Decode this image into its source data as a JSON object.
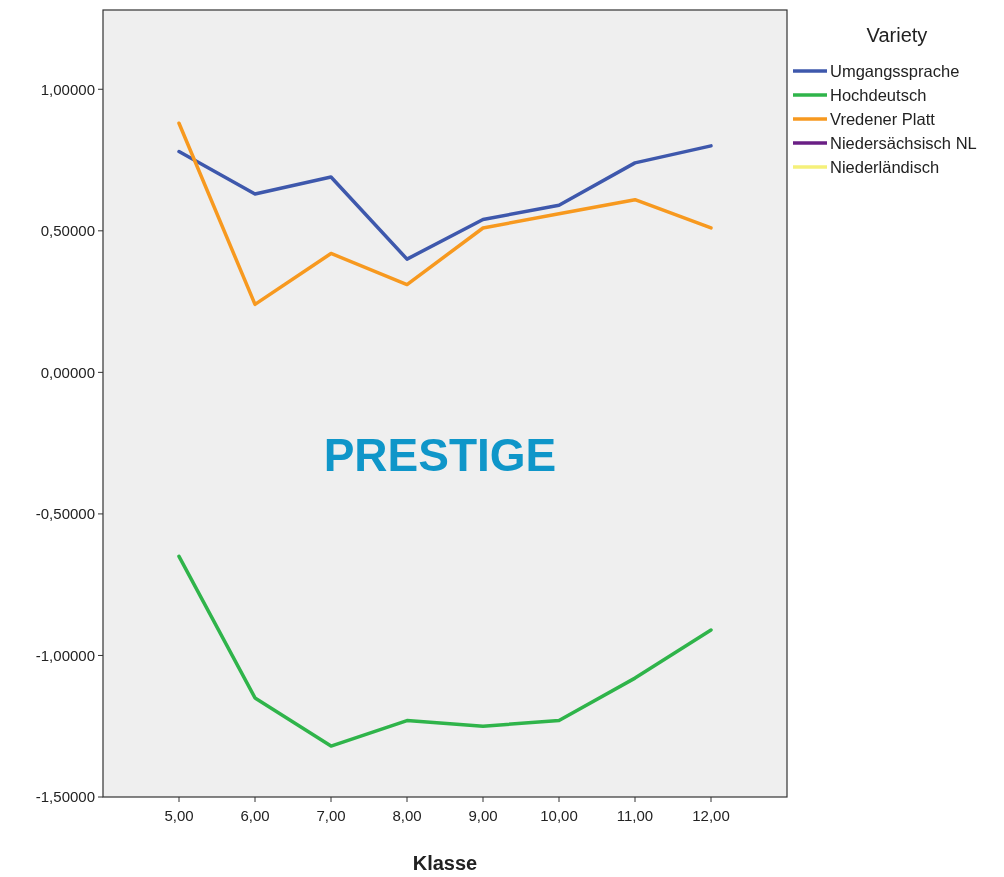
{
  "chart_data": {
    "type": "line",
    "xlabel": "Klasse",
    "legend_title": "Variety",
    "annotations": [
      "PRESTIGE"
    ],
    "x": [
      5,
      6,
      7,
      8,
      9,
      10,
      11,
      12
    ],
    "xlim": [
      4,
      13
    ],
    "xticks": [
      {
        "value": 5,
        "label": "5,00"
      },
      {
        "value": 6,
        "label": "6,00"
      },
      {
        "value": 7,
        "label": "7,00"
      },
      {
        "value": 8,
        "label": "8,00"
      },
      {
        "value": 9,
        "label": "9,00"
      },
      {
        "value": 10,
        "label": "10,00"
      },
      {
        "value": 11,
        "label": "11,00"
      },
      {
        "value": 12,
        "label": "12,00"
      }
    ],
    "ylim": [
      -1.5,
      1.28
    ],
    "yticks": [
      {
        "value": -1.5,
        "label": "-1,50000"
      },
      {
        "value": -1,
        "label": "-1,00000"
      },
      {
        "value": -0.5,
        "label": "-0,50000"
      },
      {
        "value": 0,
        "label": "0,00000"
      },
      {
        "value": 0.5,
        "label": "0,50000"
      },
      {
        "value": 1,
        "label": "1,00000"
      }
    ],
    "grid": false,
    "legend": "top right",
    "marker": "none",
    "line_style": "solid",
    "series": [
      {
        "name": "Umgangssprache",
        "color": "#3e58ac",
        "values": [
          0.78,
          0.63,
          0.69,
          0.4,
          0.54,
          0.59,
          0.74,
          0.8
        ]
      },
      {
        "name": "Hochdeutsch",
        "color": "#2fb44a",
        "values": [
          -0.65,
          -1.15,
          -1.32,
          -1.23,
          -1.25,
          -1.23,
          -1.08,
          -0.91
        ]
      },
      {
        "name": "Vredener Platt",
        "color": "#f7991f",
        "values": [
          0.88,
          0.24,
          0.42,
          0.31,
          0.51,
          0.56,
          0.61,
          0.51
        ]
      },
      {
        "name": "Niedersächsisch NL",
        "color": "#6a1f85",
        "values": [
          null,
          null,
          null,
          null,
          null,
          null,
          null,
          null
        ]
      },
      {
        "name": "Niederländisch",
        "color": "#f5f07a",
        "values": [
          null,
          null,
          null,
          null,
          null,
          null,
          null,
          null
        ]
      }
    ]
  }
}
